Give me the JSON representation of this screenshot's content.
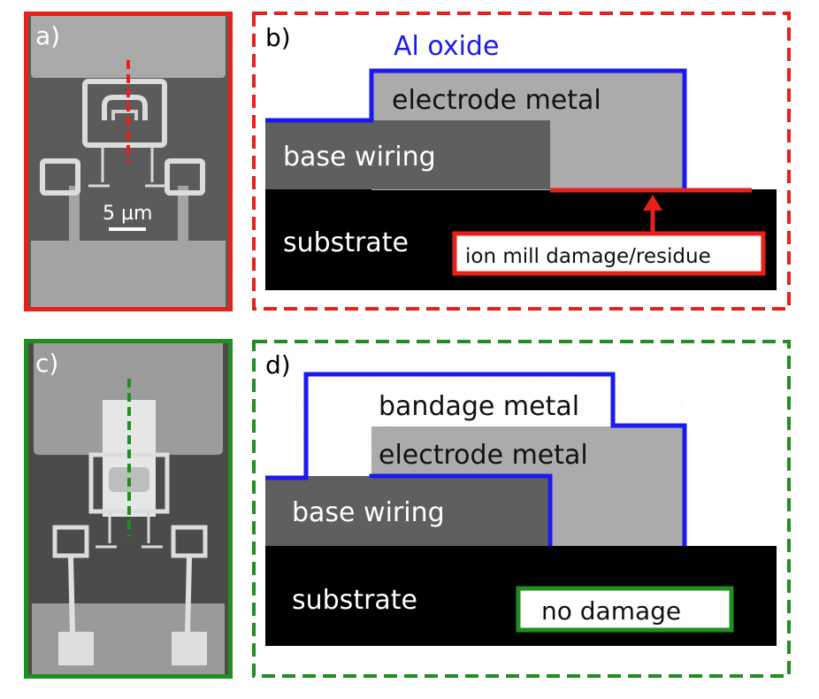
{
  "panels": {
    "a": {
      "label": "a)",
      "scale_bar": "5 µm"
    },
    "b": {
      "label": "b)",
      "oxide": "Al oxide",
      "electrode": "electrode metal",
      "base": "base wiring",
      "substrate": "substrate",
      "damage": "ion mill damage/residue"
    },
    "c": {
      "label": "c)"
    },
    "d": {
      "label": "d)",
      "bandage": "bandage metal",
      "electrode": "electrode metal",
      "base": "base wiring",
      "substrate": "substrate",
      "damage": "no damage"
    }
  },
  "colors": {
    "red": "#e8201a",
    "green": "#1f8f1f",
    "blue": "#1a1aee",
    "electrode": "#ababab",
    "base": "#5f5f5f",
    "substrate": "#000000"
  }
}
